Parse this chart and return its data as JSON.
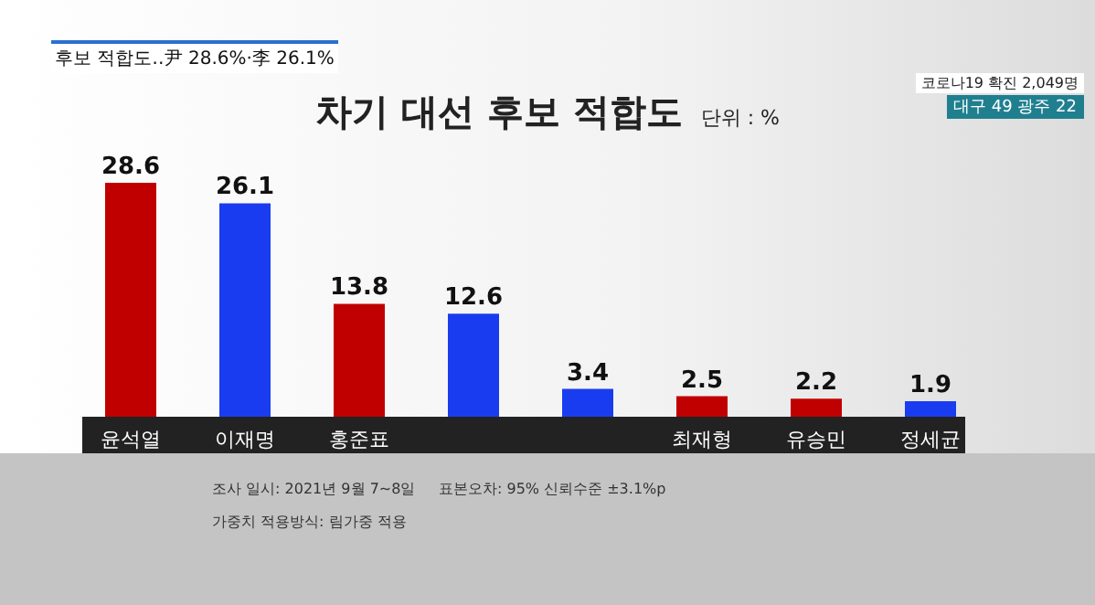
{
  "chart_data": {
    "type": "bar",
    "title": "차기 대선 후보 적합도",
    "subtitle": "단위 : %",
    "categories": [
      "윤석열",
      "이재명",
      "홍준표",
      null,
      null,
      "최재형",
      "유승민",
      "정세균"
    ],
    "values": [
      28.6,
      26.1,
      13.8,
      12.6,
      3.4,
      2.5,
      2.2,
      1.9
    ],
    "colors": [
      "#c00000",
      "#1a3cf0",
      "#c00000",
      "#1a3cf0",
      "#1a3cf0",
      "#c00000",
      "#c00000",
      "#1a3cf0"
    ],
    "data_labels": true,
    "tick_labels": "x",
    "annotations": [
      "후보 적합도‥尹 28.6%·李 26.1%",
      "코로나19 확진 2,049명",
      "대구 49 광주 22",
      "조사 일시: 2021년 9월 7~8일",
      "가중치 적용방식: 림가중 적용",
      "표본오차: 95% 신뢰수준 ±3.1%p"
    ]
  }
}
